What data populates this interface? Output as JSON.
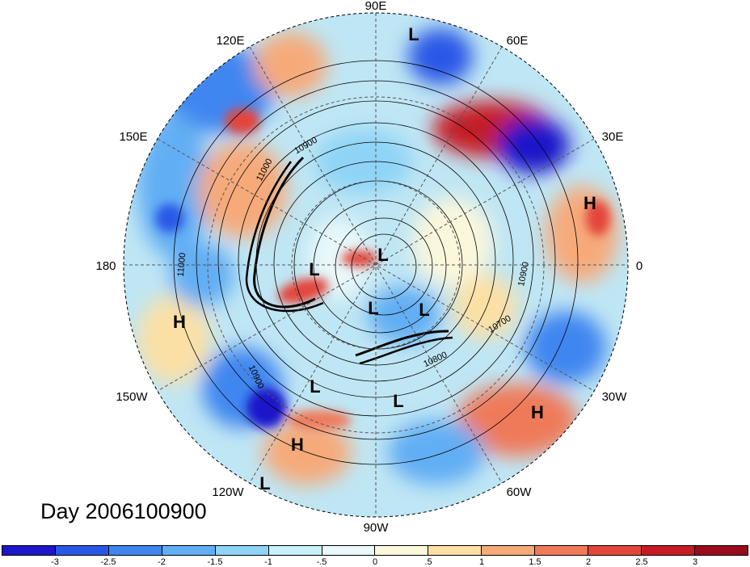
{
  "title": "Day 2006100900",
  "longitude_labels": {
    "lon_90e": "90E",
    "lon_60e": "60E",
    "lon_30e": "30E",
    "lon_0": "0",
    "lon_30w": "30W",
    "lon_60w": "60W",
    "lon_90w": "90W",
    "lon_120w": "120W",
    "lon_150w": "150W",
    "lon_180": "180",
    "lon_150e": "150E",
    "lon_120e": "120E"
  },
  "pressure_centers": [
    {
      "symbol": "L"
    },
    {
      "symbol": "H"
    },
    {
      "symbol": "L"
    },
    {
      "symbol": "L"
    },
    {
      "symbol": "L"
    },
    {
      "symbol": "L"
    },
    {
      "symbol": "H"
    },
    {
      "symbol": "L"
    },
    {
      "symbol": "L"
    },
    {
      "symbol": "H"
    },
    {
      "symbol": "H"
    },
    {
      "symbol": "L"
    }
  ],
  "contour_labels": [
    "10900",
    "11000",
    "11000",
    "10900",
    "10900",
    "10700",
    "10800"
  ],
  "colorbar": {
    "colors": [
      "#1d16c9",
      "#2a58e6",
      "#3f86f0",
      "#62aef4",
      "#8fd4f6",
      "#c6f0fa",
      "#e8f8fb",
      "#fbf7dc",
      "#fbe0a6",
      "#f6aa7a",
      "#ef7a5a",
      "#e4453b",
      "#c61b25",
      "#9a0a1c"
    ],
    "ticks": [
      "-3",
      "-2.5",
      "-2",
      "-1.5",
      "-1",
      "-.5",
      "0",
      ".5",
      "1",
      "1.5",
      "2",
      "2.5",
      "3"
    ]
  }
}
